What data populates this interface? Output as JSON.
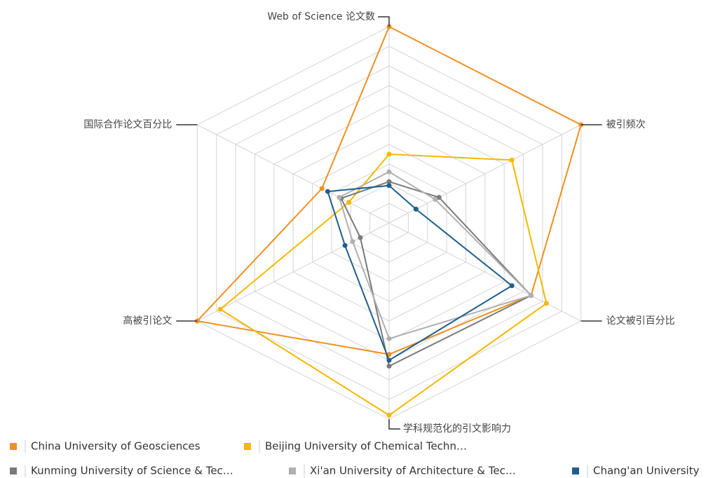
{
  "chart_data": {
    "type": "radar",
    "axes": [
      "Web of Science 论文数",
      "被引频次",
      "论文被引百分比",
      "学科规范化的引文影响力",
      "高被引论文",
      "国际合作论文百分比"
    ],
    "rlim": [
      0,
      100
    ],
    "rticks": [
      10,
      20,
      30,
      40,
      50,
      60,
      70,
      80,
      90,
      100
    ],
    "grid": true,
    "legend": "bottom",
    "series": [
      {
        "name": "China University of Geosciences",
        "color": "#f0901f",
        "values": [
          100,
          100,
          74,
          67,
          100,
          35
        ]
      },
      {
        "name": "Beijing University of Chemical Techn…",
        "color": "#f5b800",
        "values": [
          35,
          64,
          82,
          98,
          88,
          21
        ]
      },
      {
        "name": "Kunming University of Science & Tec…",
        "color": "#7a7a7a",
        "values": [
          21,
          26,
          74,
          73,
          15,
          25
        ]
      },
      {
        "name": "Xi'an University of Architecture & Tec…",
        "color": "#b0b0b0",
        "values": [
          26,
          24,
          74,
          59,
          19,
          26
        ]
      },
      {
        "name": "Chang'an University",
        "color": "#1f5f8b",
        "values": [
          19,
          14,
          64,
          70,
          23,
          32
        ]
      }
    ]
  }
}
